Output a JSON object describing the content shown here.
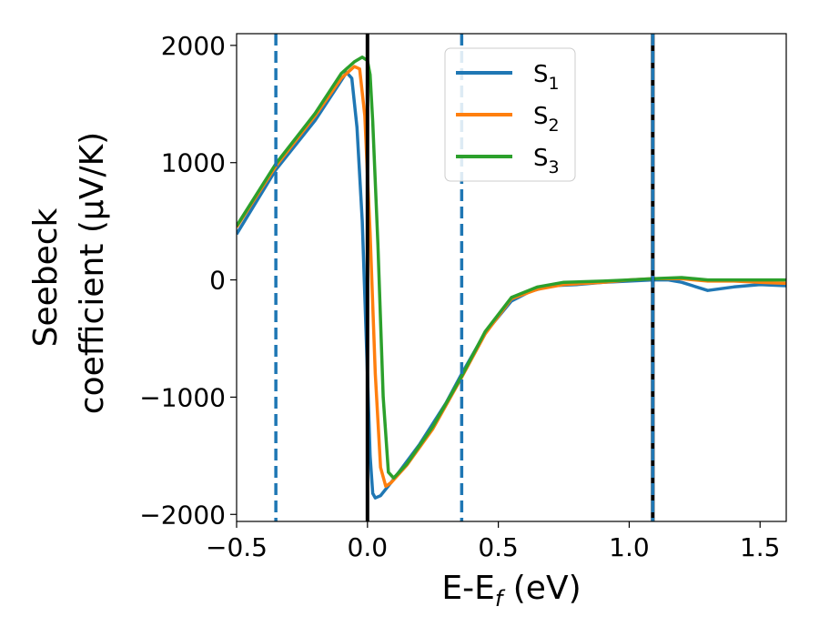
{
  "chart_data": {
    "type": "line",
    "xlabel": "E-E",
    "xlabel_sub": "f",
    "xlabel_unit": " (eV)",
    "ylabel_line1": "Seebeck",
    "ylabel_line2": "coefficient  (μV/K)",
    "xlim": [
      -0.5,
      1.6
    ],
    "ylim": [
      -2060,
      2100
    ],
    "xticks": [
      -0.5,
      0.0,
      0.5,
      1.0,
      1.5
    ],
    "xtick_labels": [
      "−0.5",
      "0.0",
      "0.5",
      "1.0",
      "1.5"
    ],
    "yticks": [
      -2000,
      -1000,
      0,
      1000,
      2000
    ],
    "ytick_labels": [
      "−2000",
      "−1000",
      "0",
      "1000",
      "2000"
    ],
    "legend_position": "top-center",
    "vlines": [
      {
        "x": -0.35,
        "style": "dashed",
        "color": "#1f77b4"
      },
      {
        "x": 0.0,
        "style": "solid",
        "color": "#000000"
      },
      {
        "x": 0.36,
        "style": "dashed",
        "color": "#1f77b4"
      },
      {
        "x": 1.09,
        "style": "solid",
        "color": "#000000"
      },
      {
        "x": 1.09,
        "style": "dashed",
        "color": "#1f77b4"
      }
    ],
    "series": [
      {
        "name": "S",
        "sub": "1",
        "color": "#1f77b4",
        "points": [
          [
            -0.5,
            390
          ],
          [
            -0.35,
            940
          ],
          [
            -0.2,
            1360
          ],
          [
            -0.1,
            1700
          ],
          [
            -0.08,
            1770
          ],
          [
            -0.06,
            1720
          ],
          [
            -0.04,
            1300
          ],
          [
            -0.02,
            500
          ],
          [
            0.0,
            -800
          ],
          [
            0.01,
            -1500
          ],
          [
            0.02,
            -1820
          ],
          [
            0.03,
            -1860
          ],
          [
            0.05,
            -1840
          ],
          [
            0.1,
            -1700
          ],
          [
            0.2,
            -1400
          ],
          [
            0.3,
            -1050
          ],
          [
            0.36,
            -800
          ],
          [
            0.45,
            -450
          ],
          [
            0.55,
            -180
          ],
          [
            0.62,
            -100
          ],
          [
            0.7,
            -50
          ],
          [
            0.8,
            -40
          ],
          [
            0.9,
            -20
          ],
          [
            1.0,
            -10
          ],
          [
            1.09,
            0
          ],
          [
            1.15,
            0
          ],
          [
            1.2,
            -20
          ],
          [
            1.3,
            -90
          ],
          [
            1.4,
            -60
          ],
          [
            1.5,
            -40
          ],
          [
            1.6,
            -50
          ]
        ]
      },
      {
        "name": "S",
        "sub": "2",
        "color": "#ff7f0e",
        "points": [
          [
            -0.5,
            450
          ],
          [
            -0.35,
            970
          ],
          [
            -0.2,
            1400
          ],
          [
            -0.1,
            1720
          ],
          [
            -0.05,
            1820
          ],
          [
            -0.03,
            1800
          ],
          [
            -0.01,
            1400
          ],
          [
            0.01,
            400
          ],
          [
            0.03,
            -800
          ],
          [
            0.05,
            -1600
          ],
          [
            0.07,
            -1760
          ],
          [
            0.09,
            -1730
          ],
          [
            0.15,
            -1580
          ],
          [
            0.25,
            -1270
          ],
          [
            0.36,
            -830
          ],
          [
            0.45,
            -460
          ],
          [
            0.55,
            -160
          ],
          [
            0.65,
            -80
          ],
          [
            0.75,
            -40
          ],
          [
            0.9,
            -20
          ],
          [
            1.0,
            0
          ],
          [
            1.09,
            10
          ],
          [
            1.2,
            10
          ],
          [
            1.3,
            -10
          ],
          [
            1.4,
            -10
          ],
          [
            1.5,
            -20
          ],
          [
            1.6,
            -30
          ]
        ]
      },
      {
        "name": "S",
        "sub": "3",
        "color": "#2ca02c",
        "points": [
          [
            -0.5,
            460
          ],
          [
            -0.35,
            990
          ],
          [
            -0.2,
            1420
          ],
          [
            -0.1,
            1760
          ],
          [
            -0.05,
            1860
          ],
          [
            -0.02,
            1900
          ],
          [
            0.0,
            1870
          ],
          [
            0.01,
            1750
          ],
          [
            0.02,
            1350
          ],
          [
            0.04,
            300
          ],
          [
            0.06,
            -1000
          ],
          [
            0.08,
            -1640
          ],
          [
            0.1,
            -1690
          ],
          [
            0.15,
            -1570
          ],
          [
            0.25,
            -1250
          ],
          [
            0.36,
            -820
          ],
          [
            0.45,
            -440
          ],
          [
            0.55,
            -150
          ],
          [
            0.65,
            -60
          ],
          [
            0.75,
            -20
          ],
          [
            0.9,
            -10
          ],
          [
            1.0,
            0
          ],
          [
            1.09,
            10
          ],
          [
            1.2,
            20
          ],
          [
            1.3,
            0
          ],
          [
            1.4,
            0
          ],
          [
            1.5,
            0
          ],
          [
            1.6,
            0
          ]
        ]
      }
    ]
  }
}
